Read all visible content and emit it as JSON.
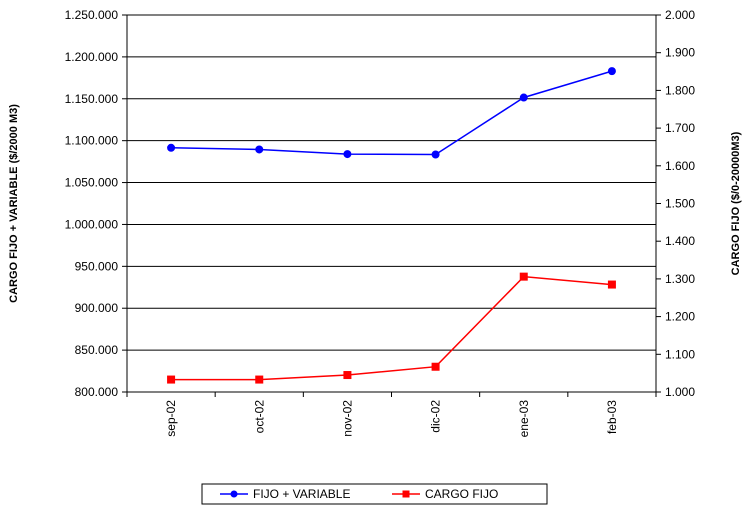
{
  "chart_data": {
    "type": "line",
    "categories": [
      "sep-02",
      "oct-02",
      "nov-02",
      "dic-02",
      "ene-03",
      "feb-03"
    ],
    "y_left": {
      "label": "CARGO FIJO + VARIABLE ($/2000 M3)",
      "min": 800000,
      "max": 1250000,
      "step": 50000,
      "tick_labels": [
        "800.000",
        "850.000",
        "900.000",
        "950.000",
        "1.000.000",
        "1.050.000",
        "1.100.000",
        "1.150.000",
        "1.200.000",
        "1.250.000"
      ]
    },
    "y_right": {
      "label": "CARGO FIJO ($/0-20000M3)",
      "min": 1000,
      "max": 2000,
      "step": 100,
      "tick_labels": [
        "1.000",
        "1.100",
        "1.200",
        "1.300",
        "1.400",
        "1.500",
        "1.600",
        "1.700",
        "1.800",
        "1.900",
        "2.000"
      ]
    },
    "series": [
      {
        "name": "FIJO + VARIABLE",
        "axis": "left",
        "color": "#0000FF",
        "marker": "circle",
        "values": [
          1091500,
          1089500,
          1084000,
          1083500,
          1151500,
          1183000
        ]
      },
      {
        "name": "CARGO FIJO",
        "axis": "right",
        "color": "#FF0000",
        "marker": "square",
        "values": [
          1033,
          1033,
          1045,
          1067,
          1306,
          1285
        ]
      }
    ],
    "grid": "horizontal",
    "legend_position": "bottom"
  }
}
